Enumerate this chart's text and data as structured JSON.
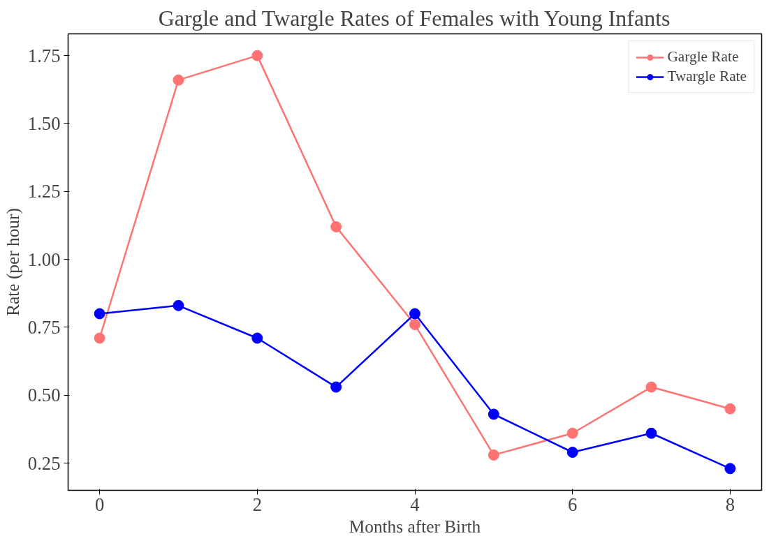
{
  "chart_data": {
    "type": "line",
    "title": "Gargle and Twargle Rates of Females with Young Infants",
    "xlabel": "Months after Birth",
    "ylabel": "Rate (per hour)",
    "x": [
      0,
      1,
      2,
      3,
      4,
      5,
      6,
      7,
      8
    ],
    "series": [
      {
        "name": "Gargle Rate",
        "color": "#ff7373",
        "values": [
          0.71,
          1.66,
          1.75,
          1.12,
          0.76,
          0.28,
          0.36,
          0.53,
          0.45
        ]
      },
      {
        "name": "Twargle Rate",
        "color": "#0000ff",
        "values": [
          0.8,
          0.83,
          0.71,
          0.53,
          0.8,
          0.43,
          0.29,
          0.36,
          0.23
        ]
      }
    ],
    "xlim": [
      -0.4,
      8.4
    ],
    "ylim": [
      0.15,
      1.83
    ],
    "xticks": [
      0,
      2,
      4,
      6,
      8
    ],
    "yticks": [
      {
        "value": 0.25,
        "label": "0.25"
      },
      {
        "value": 0.5,
        "label": "0.50"
      },
      {
        "value": 0.75,
        "label": "0.75"
      },
      {
        "value": 1.0,
        "label": "1.00"
      },
      {
        "value": 1.25,
        "label": "1.25"
      },
      {
        "value": 1.5,
        "label": "1.50"
      },
      {
        "value": 1.75,
        "label": "1.75"
      }
    ],
    "legend": "top right",
    "grid": false,
    "marker": "circle",
    "line_style": "solid"
  }
}
